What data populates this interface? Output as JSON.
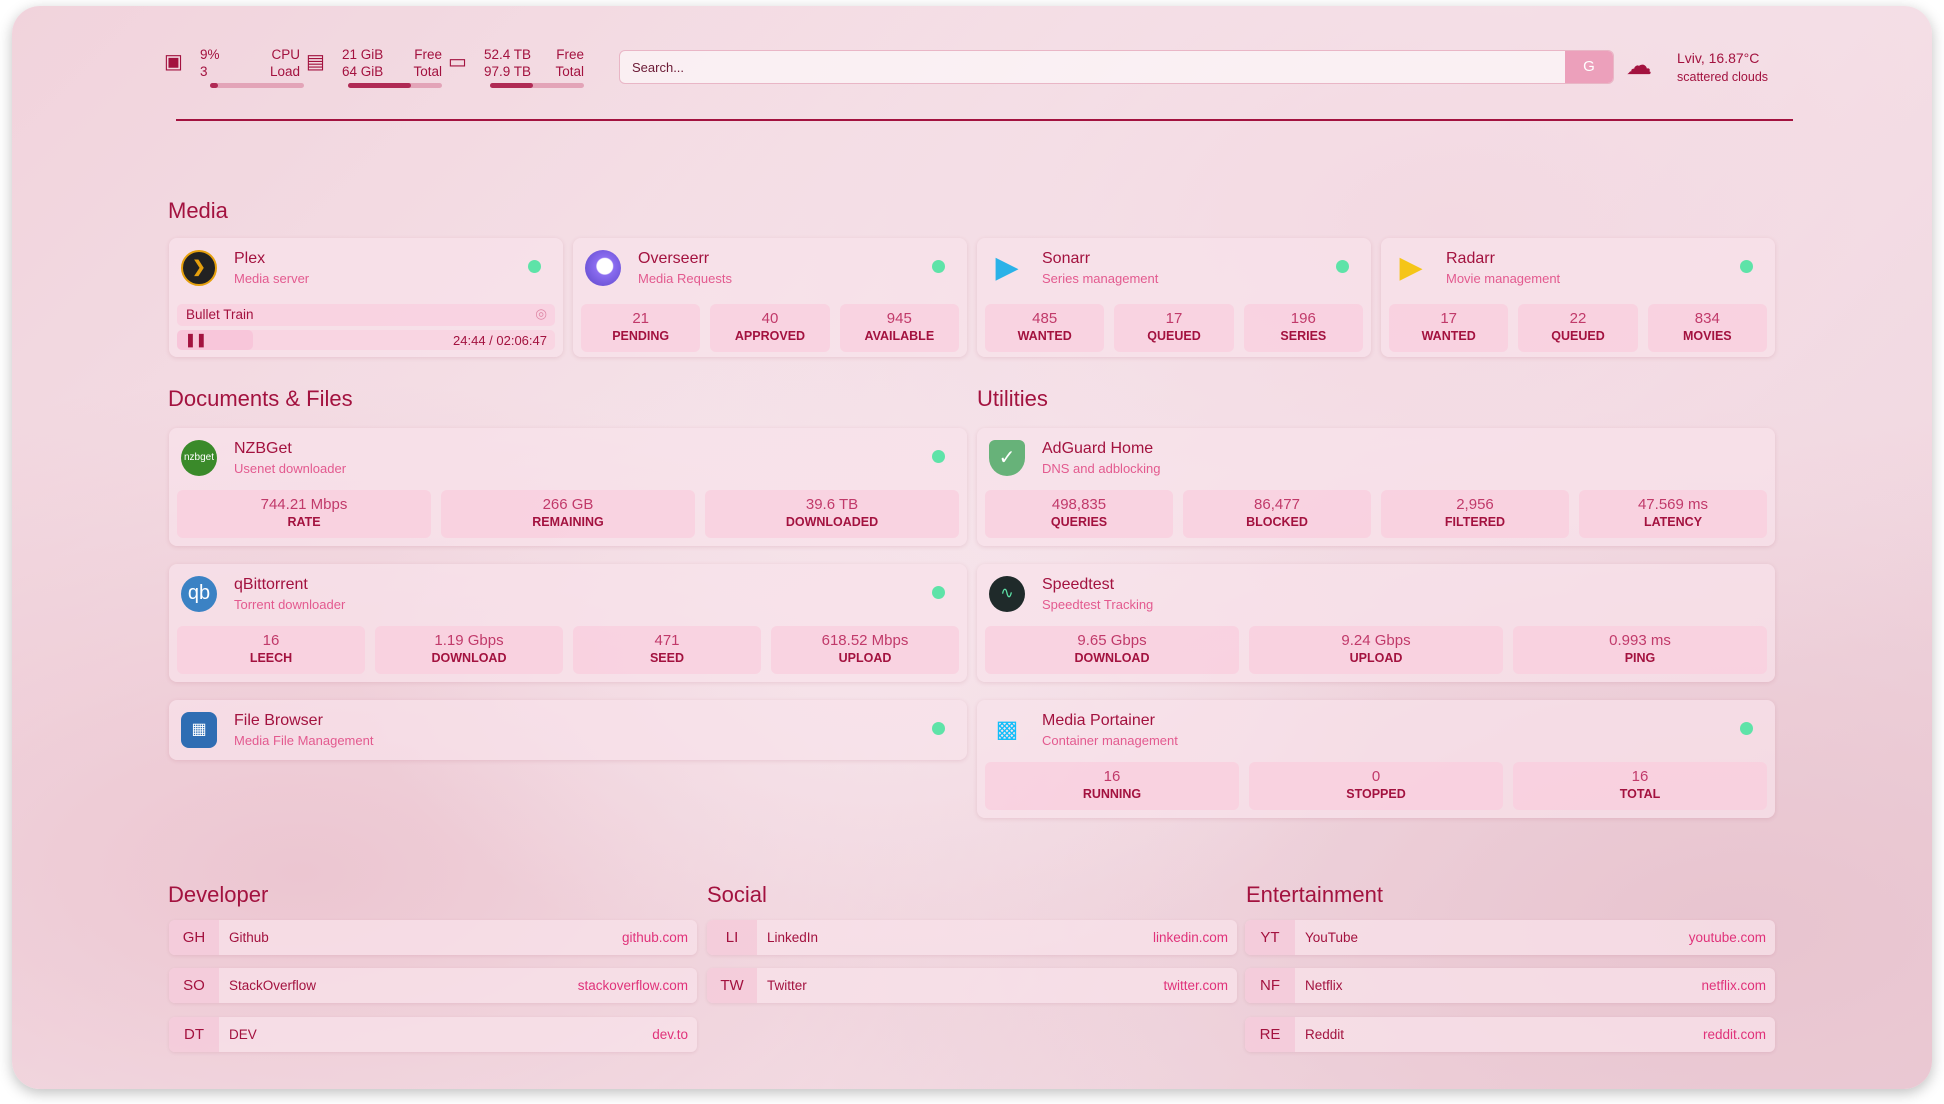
{
  "header": {
    "cpu": {
      "value": "9%",
      "sub": "3",
      "label": "CPU",
      "sublabel": "Load",
      "fill": 0.09
    },
    "ram": {
      "value": "21 GiB",
      "sub": "64 GiB",
      "label": "Free",
      "sublabel": "Total",
      "fill": 0.67
    },
    "disk": {
      "value": "52.4 TB",
      "sub": "97.9 TB",
      "label": "Free",
      "sublabel": "Total",
      "fill": 0.46
    },
    "search": {
      "placeholder": "Search...",
      "button": "G"
    },
    "weather": {
      "location": "Lviv, 16.87°C",
      "condition": "scattered clouds",
      "icon": "cloud-icon"
    }
  },
  "sections": {
    "media": "Media",
    "docs": "Documents & Files",
    "utilities": "Utilities",
    "developer": "Developer",
    "social": "Social",
    "entertainment": "Entertainment"
  },
  "media": [
    {
      "name": "Plex",
      "desc": "Media server",
      "now_playing": "Bullet Train",
      "time": "24:44 / 02:06:47"
    },
    {
      "name": "Overseerr",
      "desc": "Media Requests",
      "stats": [
        {
          "v": "21",
          "k": "PENDING"
        },
        {
          "v": "40",
          "k": "APPROVED"
        },
        {
          "v": "945",
          "k": "AVAILABLE"
        }
      ]
    },
    {
      "name": "Sonarr",
      "desc": "Series management",
      "stats": [
        {
          "v": "485",
          "k": "WANTED"
        },
        {
          "v": "17",
          "k": "QUEUED"
        },
        {
          "v": "196",
          "k": "SERIES"
        }
      ]
    },
    {
      "name": "Radarr",
      "desc": "Movie management",
      "stats": [
        {
          "v": "17",
          "k": "WANTED"
        },
        {
          "v": "22",
          "k": "QUEUED"
        },
        {
          "v": "834",
          "k": "MOVIES"
        }
      ]
    }
  ],
  "docs": [
    {
      "name": "NZBGet",
      "desc": "Usenet downloader",
      "logo": "nzbget",
      "stats": [
        {
          "v": "744.21 Mbps",
          "k": "RATE"
        },
        {
          "v": "266 GB",
          "k": "REMAINING"
        },
        {
          "v": "39.6 TB",
          "k": "DOWNLOADED"
        }
      ]
    },
    {
      "name": "qBittorrent",
      "desc": "Torrent downloader",
      "logo": "qb",
      "stats": [
        {
          "v": "16",
          "k": "LEECH"
        },
        {
          "v": "1.19 Gbps",
          "k": "DOWNLOAD"
        },
        {
          "v": "471",
          "k": "SEED"
        },
        {
          "v": "618.52 Mbps",
          "k": "UPLOAD"
        }
      ]
    },
    {
      "name": "File Browser",
      "desc": "Media File Management"
    }
  ],
  "utilities": [
    {
      "name": "AdGuard Home",
      "desc": "DNS and adblocking",
      "stats": [
        {
          "v": "498,835",
          "k": "QUERIES"
        },
        {
          "v": "86,477",
          "k": "BLOCKED"
        },
        {
          "v": "2,956",
          "k": "FILTERED"
        },
        {
          "v": "47.569 ms",
          "k": "LATENCY"
        }
      ]
    },
    {
      "name": "Speedtest",
      "desc": "Speedtest Tracking",
      "stats": [
        {
          "v": "9.65 Gbps",
          "k": "DOWNLOAD"
        },
        {
          "v": "9.24 Gbps",
          "k": "UPLOAD"
        },
        {
          "v": "0.993 ms",
          "k": "PING"
        }
      ]
    },
    {
      "name": "Media Portainer",
      "desc": "Container management",
      "stats": [
        {
          "v": "16",
          "k": "RUNNING"
        },
        {
          "v": "0",
          "k": "STOPPED"
        },
        {
          "v": "16",
          "k": "TOTAL"
        }
      ]
    }
  ],
  "bookmarks": {
    "developer": [
      {
        "ab": "GH",
        "name": "Github",
        "url": "github.com"
      },
      {
        "ab": "SO",
        "name": "StackOverflow",
        "url": "stackoverflow.com"
      },
      {
        "ab": "DT",
        "name": "DEV",
        "url": "dev.to"
      }
    ],
    "social": [
      {
        "ab": "LI",
        "name": "LinkedIn",
        "url": "linkedin.com"
      },
      {
        "ab": "TW",
        "name": "Twitter",
        "url": "twitter.com"
      }
    ],
    "entertainment": [
      {
        "ab": "YT",
        "name": "YouTube",
        "url": "youtube.com"
      },
      {
        "ab": "NF",
        "name": "Netflix",
        "url": "netflix.com"
      },
      {
        "ab": "RE",
        "name": "Reddit",
        "url": "reddit.com"
      }
    ]
  },
  "colors": {
    "primary": "#a3123f",
    "accent": "#e35a8f",
    "status_ok": "#5ee3a8"
  }
}
